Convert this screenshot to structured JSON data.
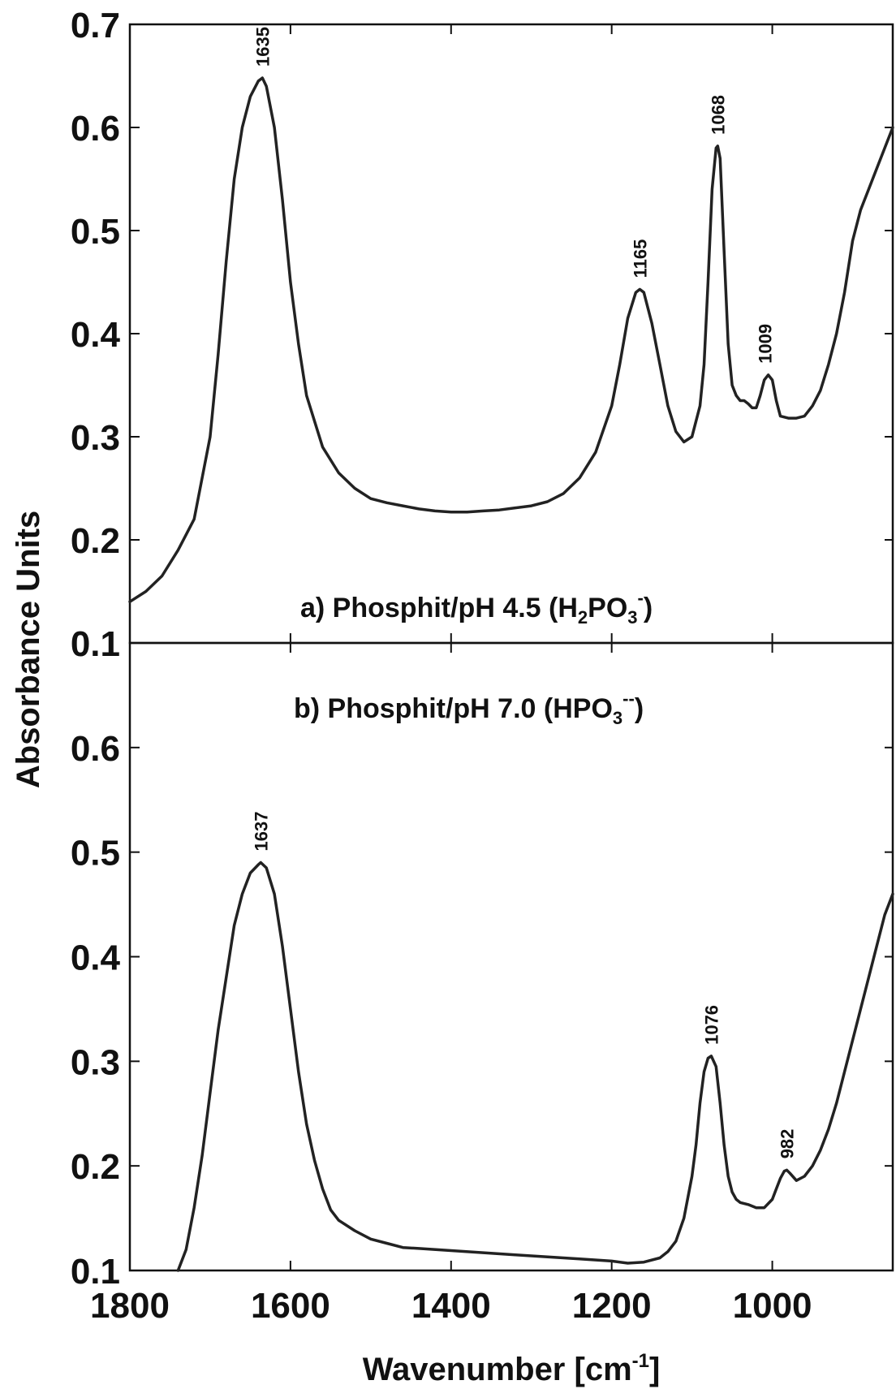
{
  "chart_data": [
    {
      "type": "line",
      "panel_label": {
        "prefix": "a) Phosphit/pH 4.5 (H",
        "sub1": "2",
        "mid": "PO",
        "sub2": "3",
        "sup": "-",
        "suffix": ")"
      },
      "xlim": [
        1800,
        850
      ],
      "ylim": [
        0.1,
        0.7
      ],
      "x_ticks": [
        1800,
        1600,
        1400,
        1200,
        1000
      ],
      "y_ticks": [
        "0.1",
        "0.2",
        "0.3",
        "0.4",
        "0.5",
        "0.6",
        "0.7"
      ],
      "series": [
        {
          "x": [
            1800,
            1780,
            1760,
            1740,
            1720,
            1700,
            1690,
            1680,
            1670,
            1660,
            1650,
            1640,
            1635,
            1630,
            1620,
            1610,
            1600,
            1590,
            1580,
            1560,
            1540,
            1520,
            1500,
            1480,
            1460,
            1440,
            1420,
            1400,
            1380,
            1360,
            1340,
            1320,
            1300,
            1280,
            1260,
            1240,
            1220,
            1200,
            1190,
            1180,
            1170,
            1165,
            1160,
            1150,
            1140,
            1130,
            1120,
            1110,
            1100,
            1090,
            1085,
            1080,
            1075,
            1070,
            1068,
            1065,
            1060,
            1055,
            1050,
            1045,
            1040,
            1035,
            1030,
            1025,
            1020,
            1015,
            1010,
            1005,
            1000,
            995,
            990,
            980,
            970,
            960,
            950,
            940,
            930,
            920,
            910,
            900,
            890,
            880,
            870,
            860,
            850
          ],
          "y": [
            0.14,
            0.15,
            0.165,
            0.19,
            0.22,
            0.3,
            0.38,
            0.47,
            0.55,
            0.6,
            0.63,
            0.645,
            0.648,
            0.64,
            0.6,
            0.53,
            0.45,
            0.39,
            0.34,
            0.29,
            0.265,
            0.25,
            0.24,
            0.236,
            0.233,
            0.23,
            0.228,
            0.227,
            0.227,
            0.228,
            0.229,
            0.231,
            0.233,
            0.237,
            0.245,
            0.26,
            0.285,
            0.33,
            0.37,
            0.415,
            0.44,
            0.443,
            0.44,
            0.41,
            0.37,
            0.33,
            0.305,
            0.295,
            0.3,
            0.33,
            0.37,
            0.45,
            0.54,
            0.58,
            0.582,
            0.57,
            0.48,
            0.39,
            0.35,
            0.34,
            0.335,
            0.335,
            0.332,
            0.328,
            0.328,
            0.34,
            0.355,
            0.36,
            0.355,
            0.335,
            0.32,
            0.318,
            0.318,
            0.32,
            0.33,
            0.345,
            0.37,
            0.4,
            0.44,
            0.49,
            0.52,
            0.54,
            0.56,
            0.58,
            0.6
          ]
        }
      ],
      "peak_labels": [
        {
          "text": "1635",
          "x": 1635,
          "y": 0.648
        },
        {
          "text": "1165",
          "x": 1165,
          "y": 0.443
        },
        {
          "text": "1068",
          "x": 1068,
          "y": 0.582
        },
        {
          "text": "1009",
          "x": 1009,
          "y": 0.36
        }
      ]
    },
    {
      "type": "line",
      "panel_label": {
        "prefix": "b) Phosphit/pH 7.0 (HPO",
        "sub1": "",
        "mid": "",
        "sub2": "3",
        "sup": "--",
        "suffix": ")"
      },
      "xlim": [
        1800,
        850
      ],
      "ylim": [
        0.1,
        0.7
      ],
      "x_ticks": [
        1800,
        1600,
        1400,
        1200,
        1000
      ],
      "y_ticks": [
        "0.1",
        "0.2",
        "0.3",
        "0.4",
        "0.5",
        "0.6"
      ],
      "series": [
        {
          "x": [
            1740,
            1730,
            1720,
            1710,
            1700,
            1690,
            1680,
            1670,
            1660,
            1650,
            1640,
            1637,
            1630,
            1620,
            1610,
            1600,
            1590,
            1580,
            1570,
            1560,
            1550,
            1540,
            1520,
            1500,
            1480,
            1460,
            1440,
            1400,
            1360,
            1320,
            1280,
            1240,
            1200,
            1180,
            1160,
            1140,
            1130,
            1120,
            1110,
            1100,
            1095,
            1090,
            1085,
            1080,
            1076,
            1070,
            1065,
            1060,
            1055,
            1050,
            1045,
            1040,
            1030,
            1020,
            1010,
            1000,
            995,
            990,
            985,
            982,
            978,
            970,
            960,
            950,
            940,
            930,
            920,
            910,
            900,
            890,
            880,
            870,
            860,
            850
          ],
          "y": [
            0.1,
            0.12,
            0.16,
            0.21,
            0.27,
            0.33,
            0.38,
            0.43,
            0.46,
            0.48,
            0.488,
            0.49,
            0.485,
            0.46,
            0.41,
            0.35,
            0.29,
            0.24,
            0.205,
            0.178,
            0.158,
            0.148,
            0.138,
            0.13,
            0.126,
            0.122,
            0.121,
            0.119,
            0.117,
            0.115,
            0.113,
            0.111,
            0.109,
            0.107,
            0.108,
            0.112,
            0.118,
            0.128,
            0.15,
            0.19,
            0.22,
            0.26,
            0.29,
            0.303,
            0.305,
            0.295,
            0.26,
            0.22,
            0.19,
            0.175,
            0.168,
            0.165,
            0.163,
            0.16,
            0.16,
            0.168,
            0.178,
            0.188,
            0.195,
            0.196,
            0.193,
            0.186,
            0.19,
            0.2,
            0.215,
            0.235,
            0.26,
            0.29,
            0.32,
            0.35,
            0.38,
            0.41,
            0.44,
            0.46
          ]
        }
      ],
      "peak_labels": [
        {
          "text": "1637",
          "x": 1637,
          "y": 0.49
        },
        {
          "text": "1076",
          "x": 1076,
          "y": 0.305
        },
        {
          "text": "982",
          "x": 982,
          "y": 0.196
        }
      ]
    }
  ],
  "x_axis_title": {
    "text": "Wavenumber ",
    "unit": "[cm",
    "unit_sup": "-1",
    "unit_close": "]"
  },
  "y_axis_title": "Absorbance Units"
}
